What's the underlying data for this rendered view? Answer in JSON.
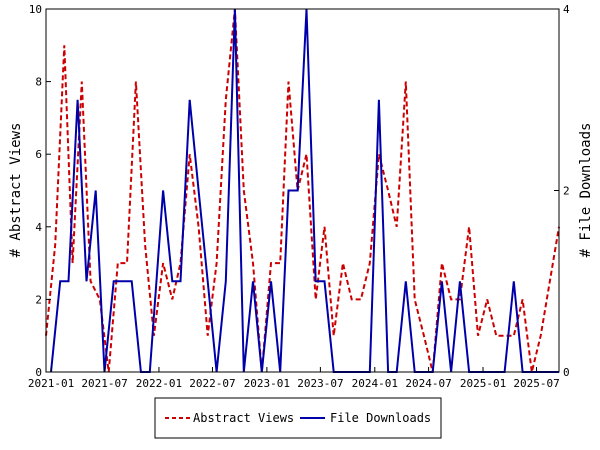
{
  "chart_data": {
    "type": "line",
    "xlabel": "",
    "ylabel_left": "# Abstract Views",
    "ylabel_right": "# File Downloads",
    "ylim_left": [
      0,
      10
    ],
    "ylim_right": [
      0,
      4
    ],
    "yticks_left": [
      "0",
      "2",
      "4",
      "6",
      "8",
      "10"
    ],
    "yticks_right": [
      "0",
      "2",
      "4"
    ],
    "xticks": [
      "2021-01",
      "2021-07",
      "2022-01",
      "2022-07",
      "2023-01",
      "2023-07",
      "2024-01",
      "2024-07",
      "2025-01",
      "2025-07"
    ],
    "x_start": "2020-12-15",
    "x_end": "2025-09-15",
    "grid": false,
    "legend_position": "bottom",
    "series": [
      {
        "name": "Abstract Views",
        "axis": "left",
        "style": "dashed",
        "color": "#cc0000",
        "points": [
          [
            "2020-12-15",
            1
          ],
          [
            "2021-01-15",
            3.5
          ],
          [
            "2021-02-15",
            9
          ],
          [
            "2021-03-15",
            3
          ],
          [
            "2021-04-15",
            8
          ],
          [
            "2021-05-15",
            2.5
          ],
          [
            "2021-06-15",
            2
          ],
          [
            "2021-07-15",
            0
          ],
          [
            "2021-08-15",
            3
          ],
          [
            "2021-09-15",
            3
          ],
          [
            "2021-10-15",
            8
          ],
          [
            "2021-11-15",
            3.5
          ],
          [
            "2021-12-15",
            1
          ],
          [
            "2022-01-15",
            3
          ],
          [
            "2022-02-15",
            2
          ],
          [
            "2022-03-15",
            3
          ],
          [
            "2022-04-15",
            6
          ],
          [
            "2022-05-15",
            4
          ],
          [
            "2022-06-15",
            1
          ],
          [
            "2022-07-15",
            3
          ],
          [
            "2022-08-15",
            7.5
          ],
          [
            "2022-09-15",
            10
          ],
          [
            "2022-10-15",
            5
          ],
          [
            "2022-11-15",
            3
          ],
          [
            "2022-12-15",
            0
          ],
          [
            "2023-01-15",
            3
          ],
          [
            "2023-02-15",
            3
          ],
          [
            "2023-03-15",
            8
          ],
          [
            "2023-04-15",
            5
          ],
          [
            "2023-05-15",
            6
          ],
          [
            "2023-06-15",
            2
          ],
          [
            "2023-07-15",
            4
          ],
          [
            "2023-08-15",
            1
          ],
          [
            "2023-09-15",
            3
          ],
          [
            "2023-10-15",
            2
          ],
          [
            "2023-11-15",
            2
          ],
          [
            "2023-12-15",
            3
          ],
          [
            "2024-01-15",
            6
          ],
          [
            "2024-02-15",
            5
          ],
          [
            "2024-03-15",
            4
          ],
          [
            "2024-04-15",
            8
          ],
          [
            "2024-05-15",
            2
          ],
          [
            "2024-06-15",
            1
          ],
          [
            "2024-07-15",
            0
          ],
          [
            "2024-08-15",
            3
          ],
          [
            "2024-09-15",
            2
          ],
          [
            "2024-10-15",
            2
          ],
          [
            "2024-11-15",
            4
          ],
          [
            "2024-12-15",
            1
          ],
          [
            "2025-01-15",
            2
          ],
          [
            "2025-02-15",
            1
          ],
          [
            "2025-03-15",
            1
          ],
          [
            "2025-04-15",
            1
          ],
          [
            "2025-05-15",
            2
          ],
          [
            "2025-06-15",
            0
          ],
          [
            "2025-07-15",
            1
          ],
          [
            "2025-09-15",
            4
          ]
        ]
      },
      {
        "name": "File Downloads",
        "axis": "right",
        "style": "solid",
        "color": "#0000aa",
        "points": [
          [
            "2021-01-01",
            0
          ],
          [
            "2021-02-01",
            1
          ],
          [
            "2021-03-01",
            1
          ],
          [
            "2021-04-01",
            3
          ],
          [
            "2021-05-01",
            1
          ],
          [
            "2021-06-01",
            2
          ],
          [
            "2021-07-01",
            0
          ],
          [
            "2021-08-01",
            1
          ],
          [
            "2021-09-01",
            1
          ],
          [
            "2021-10-01",
            1
          ],
          [
            "2021-11-01",
            0
          ],
          [
            "2021-12-01",
            0
          ],
          [
            "2022-01-15",
            2
          ],
          [
            "2022-02-15",
            1
          ],
          [
            "2022-03-15",
            1
          ],
          [
            "2022-04-15",
            3
          ],
          [
            "2022-05-15",
            2
          ],
          [
            "2022-06-15",
            1
          ],
          [
            "2022-07-15",
            0
          ],
          [
            "2022-08-15",
            1
          ],
          [
            "2022-09-15",
            4
          ],
          [
            "2022-10-15",
            0
          ],
          [
            "2022-11-15",
            1
          ],
          [
            "2022-12-15",
            0
          ],
          [
            "2023-01-15",
            1
          ],
          [
            "2023-02-15",
            0
          ],
          [
            "2023-03-15",
            2
          ],
          [
            "2023-04-15",
            2
          ],
          [
            "2023-05-15",
            4
          ],
          [
            "2023-06-15",
            1
          ],
          [
            "2023-07-15",
            1
          ],
          [
            "2023-08-15",
            0
          ],
          [
            "2023-09-15",
            0
          ],
          [
            "2023-10-15",
            0
          ],
          [
            "2023-11-15",
            0
          ],
          [
            "2023-12-15",
            0
          ],
          [
            "2024-01-15",
            3
          ],
          [
            "2024-02-15",
            0
          ],
          [
            "2024-03-15",
            0
          ],
          [
            "2024-04-15",
            1
          ],
          [
            "2024-05-15",
            0
          ],
          [
            "2024-06-15",
            0
          ],
          [
            "2024-07-15",
            0
          ],
          [
            "2024-08-15",
            1
          ],
          [
            "2024-09-15",
            0
          ],
          [
            "2024-10-15",
            1
          ],
          [
            "2024-11-15",
            0
          ],
          [
            "2024-12-15",
            0
          ],
          [
            "2025-01-15",
            0
          ],
          [
            "2025-02-15",
            0
          ],
          [
            "2025-03-15",
            0
          ],
          [
            "2025-04-15",
            1
          ],
          [
            "2025-05-15",
            0
          ],
          [
            "2025-06-15",
            0
          ],
          [
            "2025-07-15",
            0
          ],
          [
            "2025-08-15",
            0
          ],
          [
            "2025-09-15",
            0
          ]
        ]
      }
    ]
  }
}
